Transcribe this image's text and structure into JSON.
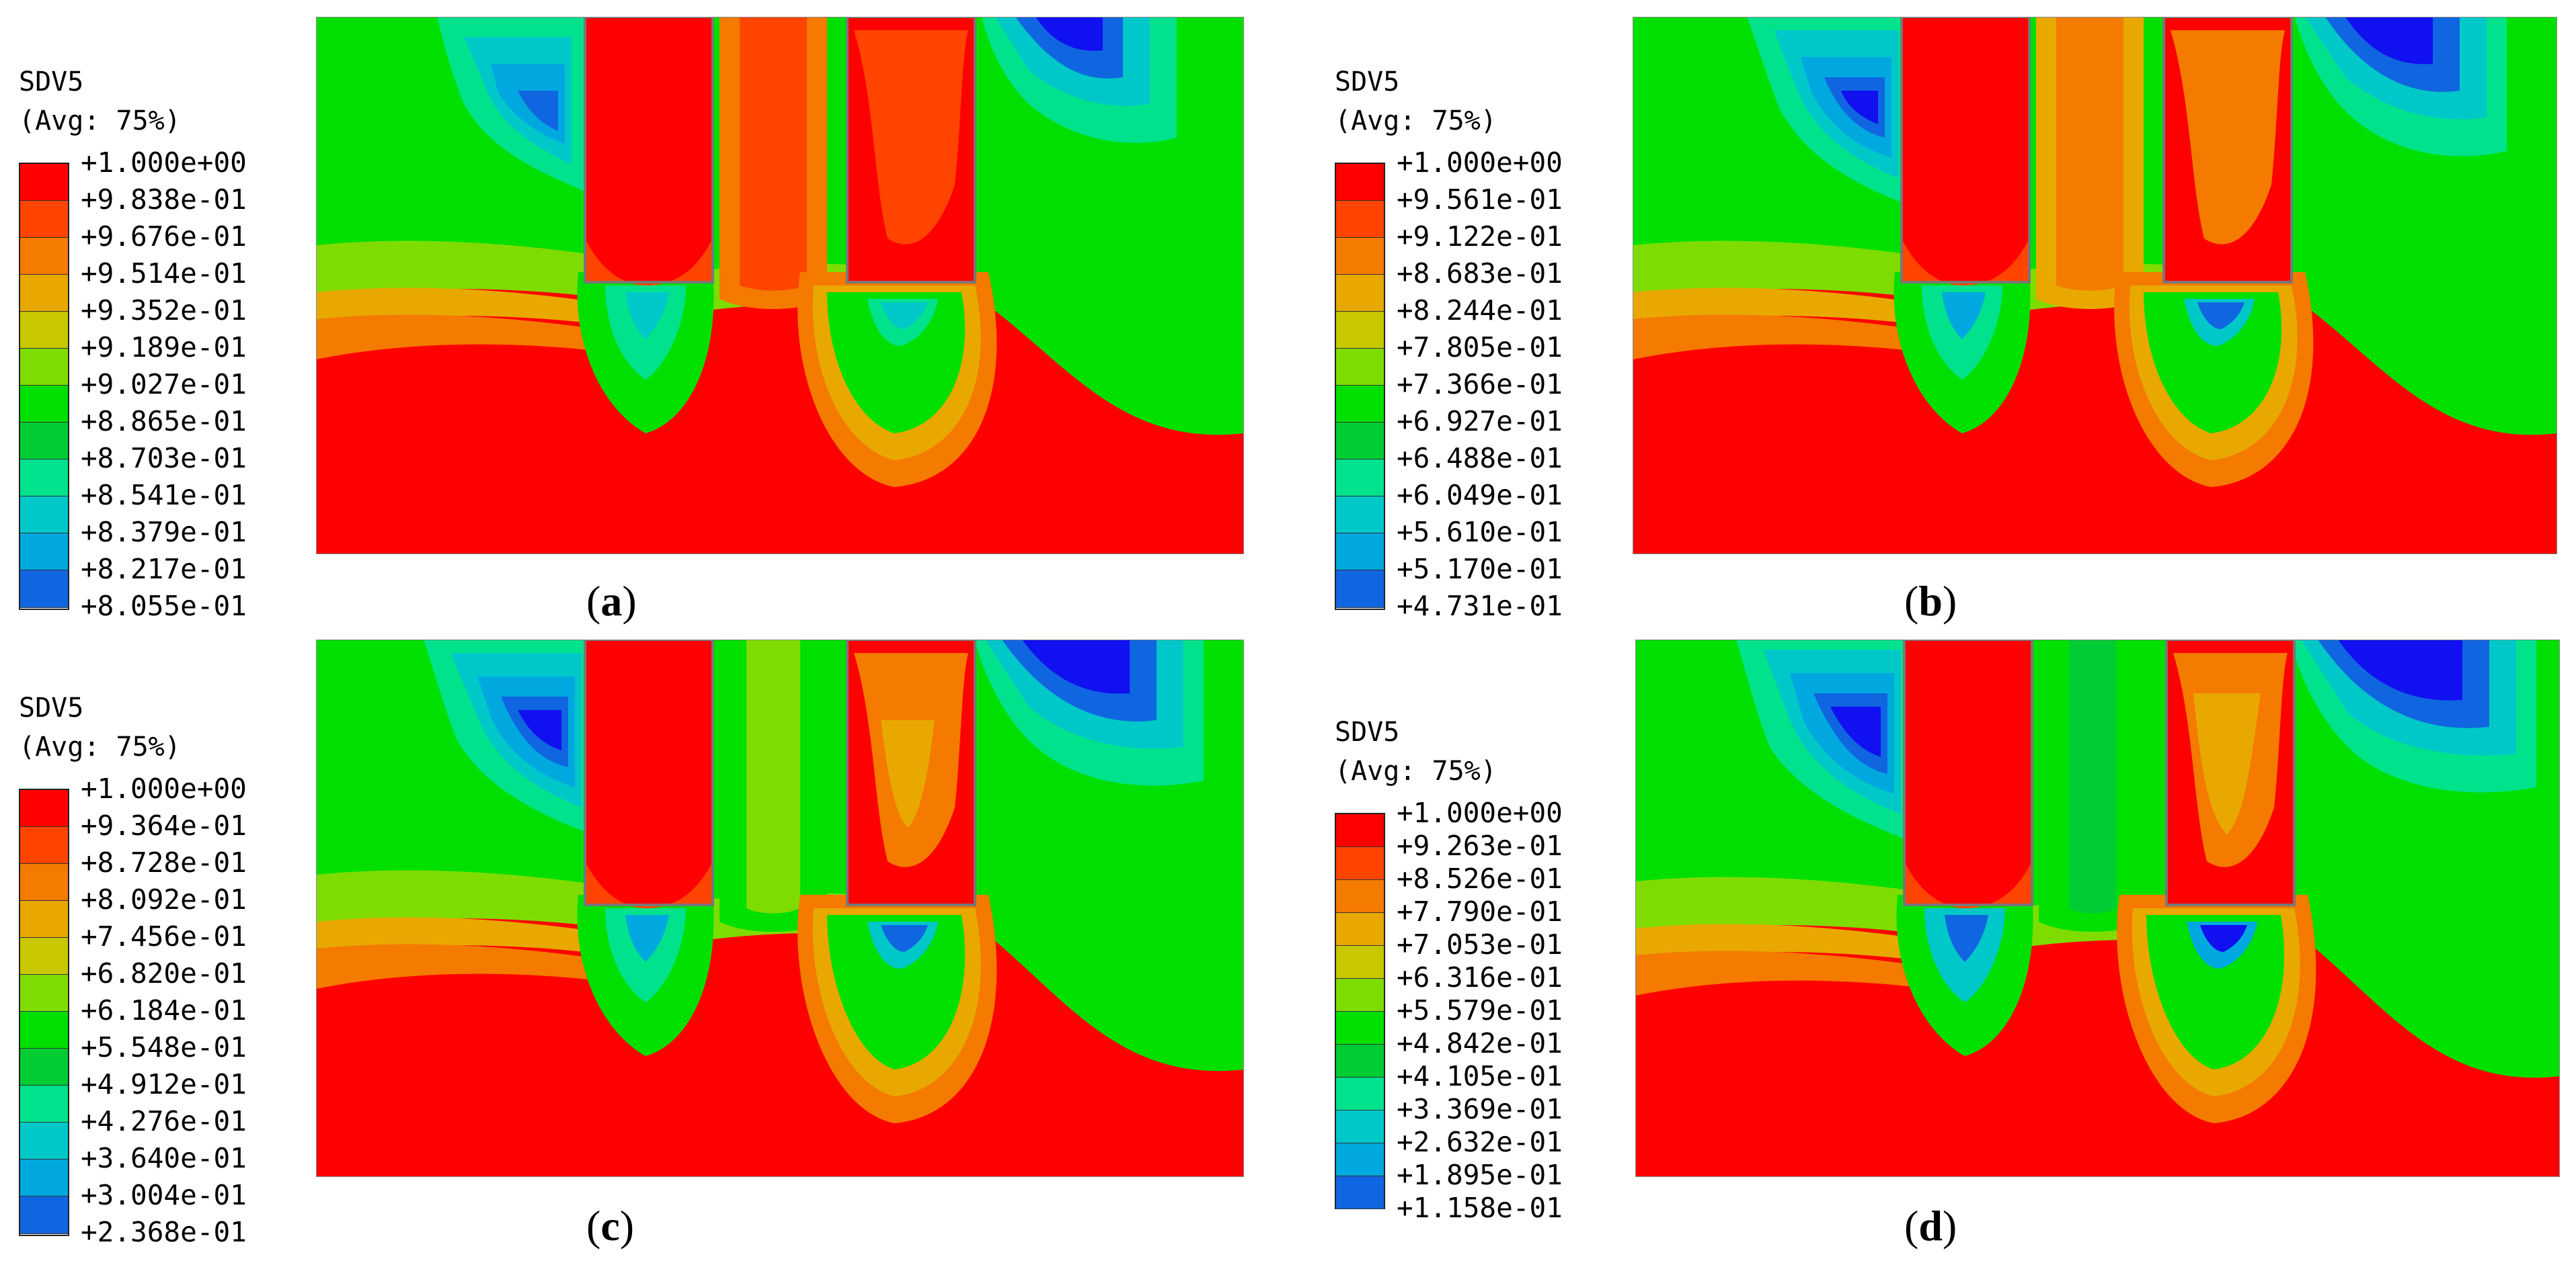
{
  "panels": [
    {
      "id": "a",
      "variable": "SDV5",
      "averaging": "(Avg: 75%)",
      "legend_values": [
        "+1.000e+00",
        "+9.838e-01",
        "+9.676e-01",
        "+9.514e-01",
        "+9.352e-01",
        "+9.189e-01",
        "+9.027e-01",
        "+8.865e-01",
        "+8.703e-01",
        "+8.541e-01",
        "+8.379e-01",
        "+8.217e-01",
        "+8.055e-01"
      ],
      "caption_open": "(",
      "caption_letter": "a",
      "caption_close": ")"
    },
    {
      "id": "b",
      "variable": "SDV5",
      "averaging": "(Avg: 75%)",
      "legend_values": [
        "+1.000e+00",
        "+9.561e-01",
        "+9.122e-01",
        "+8.683e-01",
        "+8.244e-01",
        "+7.805e-01",
        "+7.366e-01",
        "+6.927e-01",
        "+6.488e-01",
        "+6.049e-01",
        "+5.610e-01",
        "+5.170e-01",
        "+4.731e-01"
      ],
      "caption_open": "(",
      "caption_letter": "b",
      "caption_close": ")"
    },
    {
      "id": "c",
      "variable": "SDV5",
      "averaging": "(Avg: 75%)",
      "legend_values": [
        "+1.000e+00",
        "+9.364e-01",
        "+8.728e-01",
        "+8.092e-01",
        "+7.456e-01",
        "+6.820e-01",
        "+6.184e-01",
        "+5.548e-01",
        "+4.912e-01",
        "+4.276e-01",
        "+3.640e-01",
        "+3.004e-01",
        "+2.368e-01"
      ],
      "caption_open": "(",
      "caption_letter": "c",
      "caption_close": ")"
    },
    {
      "id": "d",
      "variable": "SDV5",
      "averaging": "(Avg: 75%)",
      "legend_values": [
        "+1.000e+00",
        "+9.263e-01",
        "+8.526e-01",
        "+7.790e-01",
        "+7.053e-01",
        "+6.316e-01",
        "+5.579e-01",
        "+4.842e-01",
        "+4.105e-01",
        "+3.369e-01",
        "+2.632e-01",
        "+1.895e-01",
        "+1.158e-01"
      ],
      "caption_open": "(",
      "caption_letter": "d",
      "caption_close": ")"
    }
  ],
  "colormap": [
    "#ff0000",
    "#ff4400",
    "#f47a00",
    "#e8a800",
    "#c8c800",
    "#7fdc00",
    "#00e000",
    "#00cc33",
    "#00e38c",
    "#00c8c8",
    "#00a8e0",
    "#1066e0",
    "#1010f0"
  ]
}
